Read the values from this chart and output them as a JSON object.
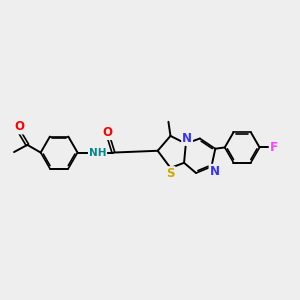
{
  "background_color": "#eeeeee",
  "bond_color": "#000000",
  "atom_colors": {
    "O": "#ff0000",
    "N": "#3333ff",
    "S": "#ccaa00",
    "F": "#ff44ff",
    "NH": "#008888",
    "C": "#000000"
  },
  "figsize": [
    3.0,
    3.0
  ],
  "dpi": 100,
  "xlim": [
    -5.0,
    6.5
  ],
  "ylim": [
    -2.5,
    3.0
  ]
}
